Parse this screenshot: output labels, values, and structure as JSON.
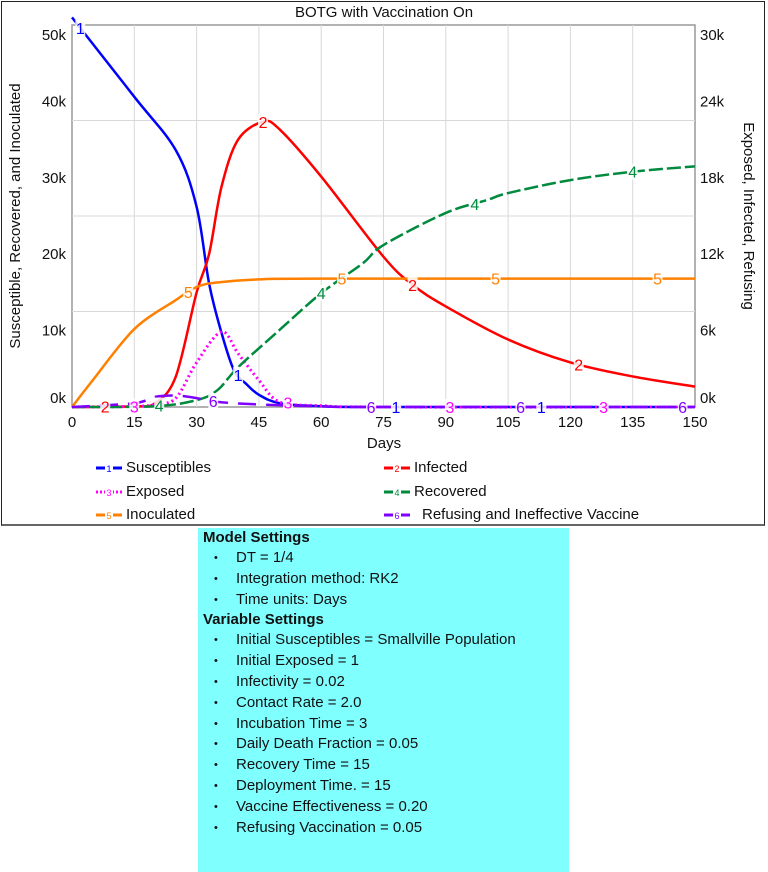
{
  "chart_data": {
    "type": "line",
    "title": "BOTG with Vaccination On",
    "xlabel": "Days",
    "ylabel_left": "Susceptible, Recovered, and Inoculated",
    "ylabel_right": "Exposed, Infected, Refusing",
    "xlim": [
      0,
      150
    ],
    "xticks": [
      0,
      15,
      30,
      45,
      60,
      75,
      90,
      105,
      120,
      135,
      150
    ],
    "ylim_left": [
      0,
      50000
    ],
    "yticks_left": [
      "0k",
      "10k",
      "20k",
      "30k",
      "40k",
      "50k"
    ],
    "ylim_right": [
      0,
      30000
    ],
    "yticks_right": [
      "0k",
      "6k",
      "12k",
      "18k",
      "24k",
      "30k"
    ],
    "grid": true,
    "legend_position": "bottom",
    "series": [
      {
        "id": "1",
        "name": "Susceptibles",
        "axis": "left",
        "color": "#0000ff",
        "style": "solid",
        "x": [
          0,
          15,
          25,
          30,
          33,
          36,
          39,
          42,
          45,
          50,
          60,
          75,
          150
        ],
        "y": [
          51000,
          40600,
          33600,
          26200,
          16200,
          9700,
          4800,
          3000,
          1600,
          500,
          100,
          0,
          0
        ]
      },
      {
        "id": "2",
        "name": "Infected",
        "axis": "right",
        "color": "#ff0000",
        "style": "solid",
        "x": [
          0,
          15,
          20,
          25,
          30,
          33,
          36,
          40,
          46,
          50,
          60,
          75,
          82,
          90,
          105,
          120,
          135,
          150
        ],
        "y": [
          0,
          50,
          300,
          2400,
          9000,
          12000,
          17300,
          21000,
          22400,
          21800,
          18100,
          11800,
          9600,
          7900,
          5300,
          3500,
          2400,
          1600
        ]
      },
      {
        "id": "3",
        "name": "Exposed",
        "axis": "right",
        "color": "#ff00ff",
        "style": "dotted",
        "x": [
          0,
          15,
          20,
          25,
          30,
          36,
          40,
          45,
          50,
          60,
          75,
          150
        ],
        "y": [
          0,
          50,
          200,
          700,
          3500,
          5900,
          4200,
          2100,
          400,
          100,
          0,
          0
        ]
      },
      {
        "id": "4",
        "name": "Recovered",
        "axis": "left",
        "color": "#008a3e",
        "style": "dashed",
        "x": [
          0,
          20,
          30,
          35,
          40,
          50,
          60,
          70,
          75,
          90,
          100,
          105,
          120,
          135,
          150
        ],
        "y": [
          0,
          100,
          900,
          2200,
          5200,
          10100,
          14900,
          18800,
          21200,
          25400,
          27100,
          28000,
          29700,
          30800,
          31500
        ]
      },
      {
        "id": "5",
        "name": "Inoculated",
        "axis": "left",
        "color": "#ff8000",
        "style": "solid",
        "x": [
          0,
          5,
          15,
          25,
          30,
          35,
          45,
          60,
          150
        ],
        "y": [
          0,
          3500,
          10200,
          14000,
          15700,
          16300,
          16700,
          16800,
          16800
        ]
      },
      {
        "id": "6",
        "name": "Refusing and Ineffective Vaccine",
        "axis": "right",
        "color": "#8000ff",
        "style": "longdash",
        "x": [
          0,
          15,
          20,
          25,
          30,
          35,
          45,
          60,
          75,
          150
        ],
        "y": [
          0,
          300,
          800,
          900,
          700,
          400,
          200,
          50,
          0,
          0
        ]
      }
    ]
  },
  "settings": {
    "model_title": "Model Settings",
    "model_items": [
      "DT = 1/4",
      "Integration method: RK2",
      "Time units: Days"
    ],
    "variable_title": "Variable Settings",
    "variable_items": [
      "Initial Susceptibles = Smallville Population",
      "Initial Exposed = 1",
      "Infectivity = 0.02",
      "Contact Rate = 2.0",
      "Incubation Time = 3",
      "Daily Death Fraction = 0.05",
      "Recovery Time = 15",
      "Deployment Time. = 15",
      "Vaccine Effectiveness = 0.20",
      "Refusing Vaccination = 0.05"
    ]
  }
}
